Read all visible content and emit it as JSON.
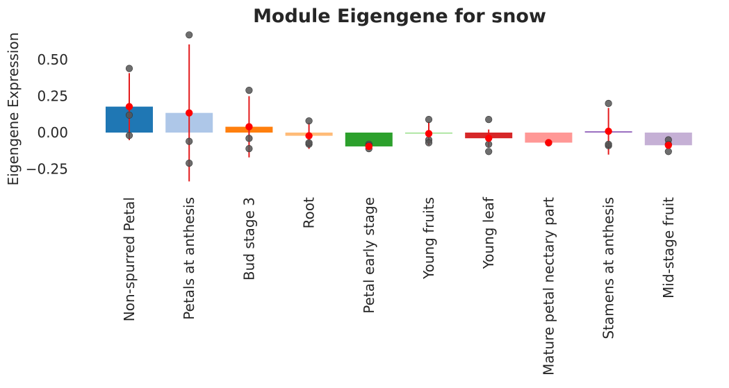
{
  "chart_data": {
    "type": "bar",
    "title": "Module Eigengene for snow",
    "xlabel": "",
    "ylabel": "Eigengene Expression",
    "ylim": [
      -0.34,
      0.68
    ],
    "yticks": [
      0.5,
      0.25,
      0.0,
      -0.25
    ],
    "ytick_labels": [
      "0.50",
      "0.25",
      "0.00",
      "−0.25"
    ],
    "grid": false,
    "categories": [
      "Non-spurred Petal",
      "Petals at anthesis",
      "Bud stage 3",
      "Root",
      "Petal early stage",
      "Young fruits",
      "Young leaf",
      "Mature petal nectary part",
      "Stamens at anthesis",
      "Mid-stage fruit"
    ],
    "values": [
      0.178,
      0.135,
      0.04,
      -0.022,
      -0.095,
      -0.007,
      -0.039,
      -0.069,
      0.009,
      -0.087
    ],
    "colors": [
      "#1f77b4",
      "#aec7e8",
      "#ff7f0e",
      "#ffbb78",
      "#2ca02c",
      "#98df8a",
      "#d62728",
      "#ff9896",
      "#9467bd",
      "#c5b0d5"
    ],
    "errors": [
      0.23,
      0.47,
      0.21,
      0.09,
      0.02,
      0.08,
      0.06,
      0.01,
      0.16,
      0.02
    ],
    "points": [
      [
        0.44,
        0.12,
        -0.02
      ],
      [
        0.67,
        -0.06,
        -0.21
      ],
      [
        0.29,
        -0.04,
        -0.11
      ],
      [
        0.08,
        -0.08,
        -0.07
      ],
      [
        -0.08,
        -0.09,
        -0.11
      ],
      [
        0.09,
        -0.05,
        -0.07
      ],
      [
        0.09,
        -0.08,
        -0.13
      ],
      [
        -0.07,
        -0.07,
        -0.07
      ],
      [
        0.2,
        -0.09,
        -0.08
      ],
      [
        -0.05,
        -0.08,
        -0.13
      ]
    ],
    "mean_marker_color": "#ff0000",
    "point_color": "#555555"
  }
}
